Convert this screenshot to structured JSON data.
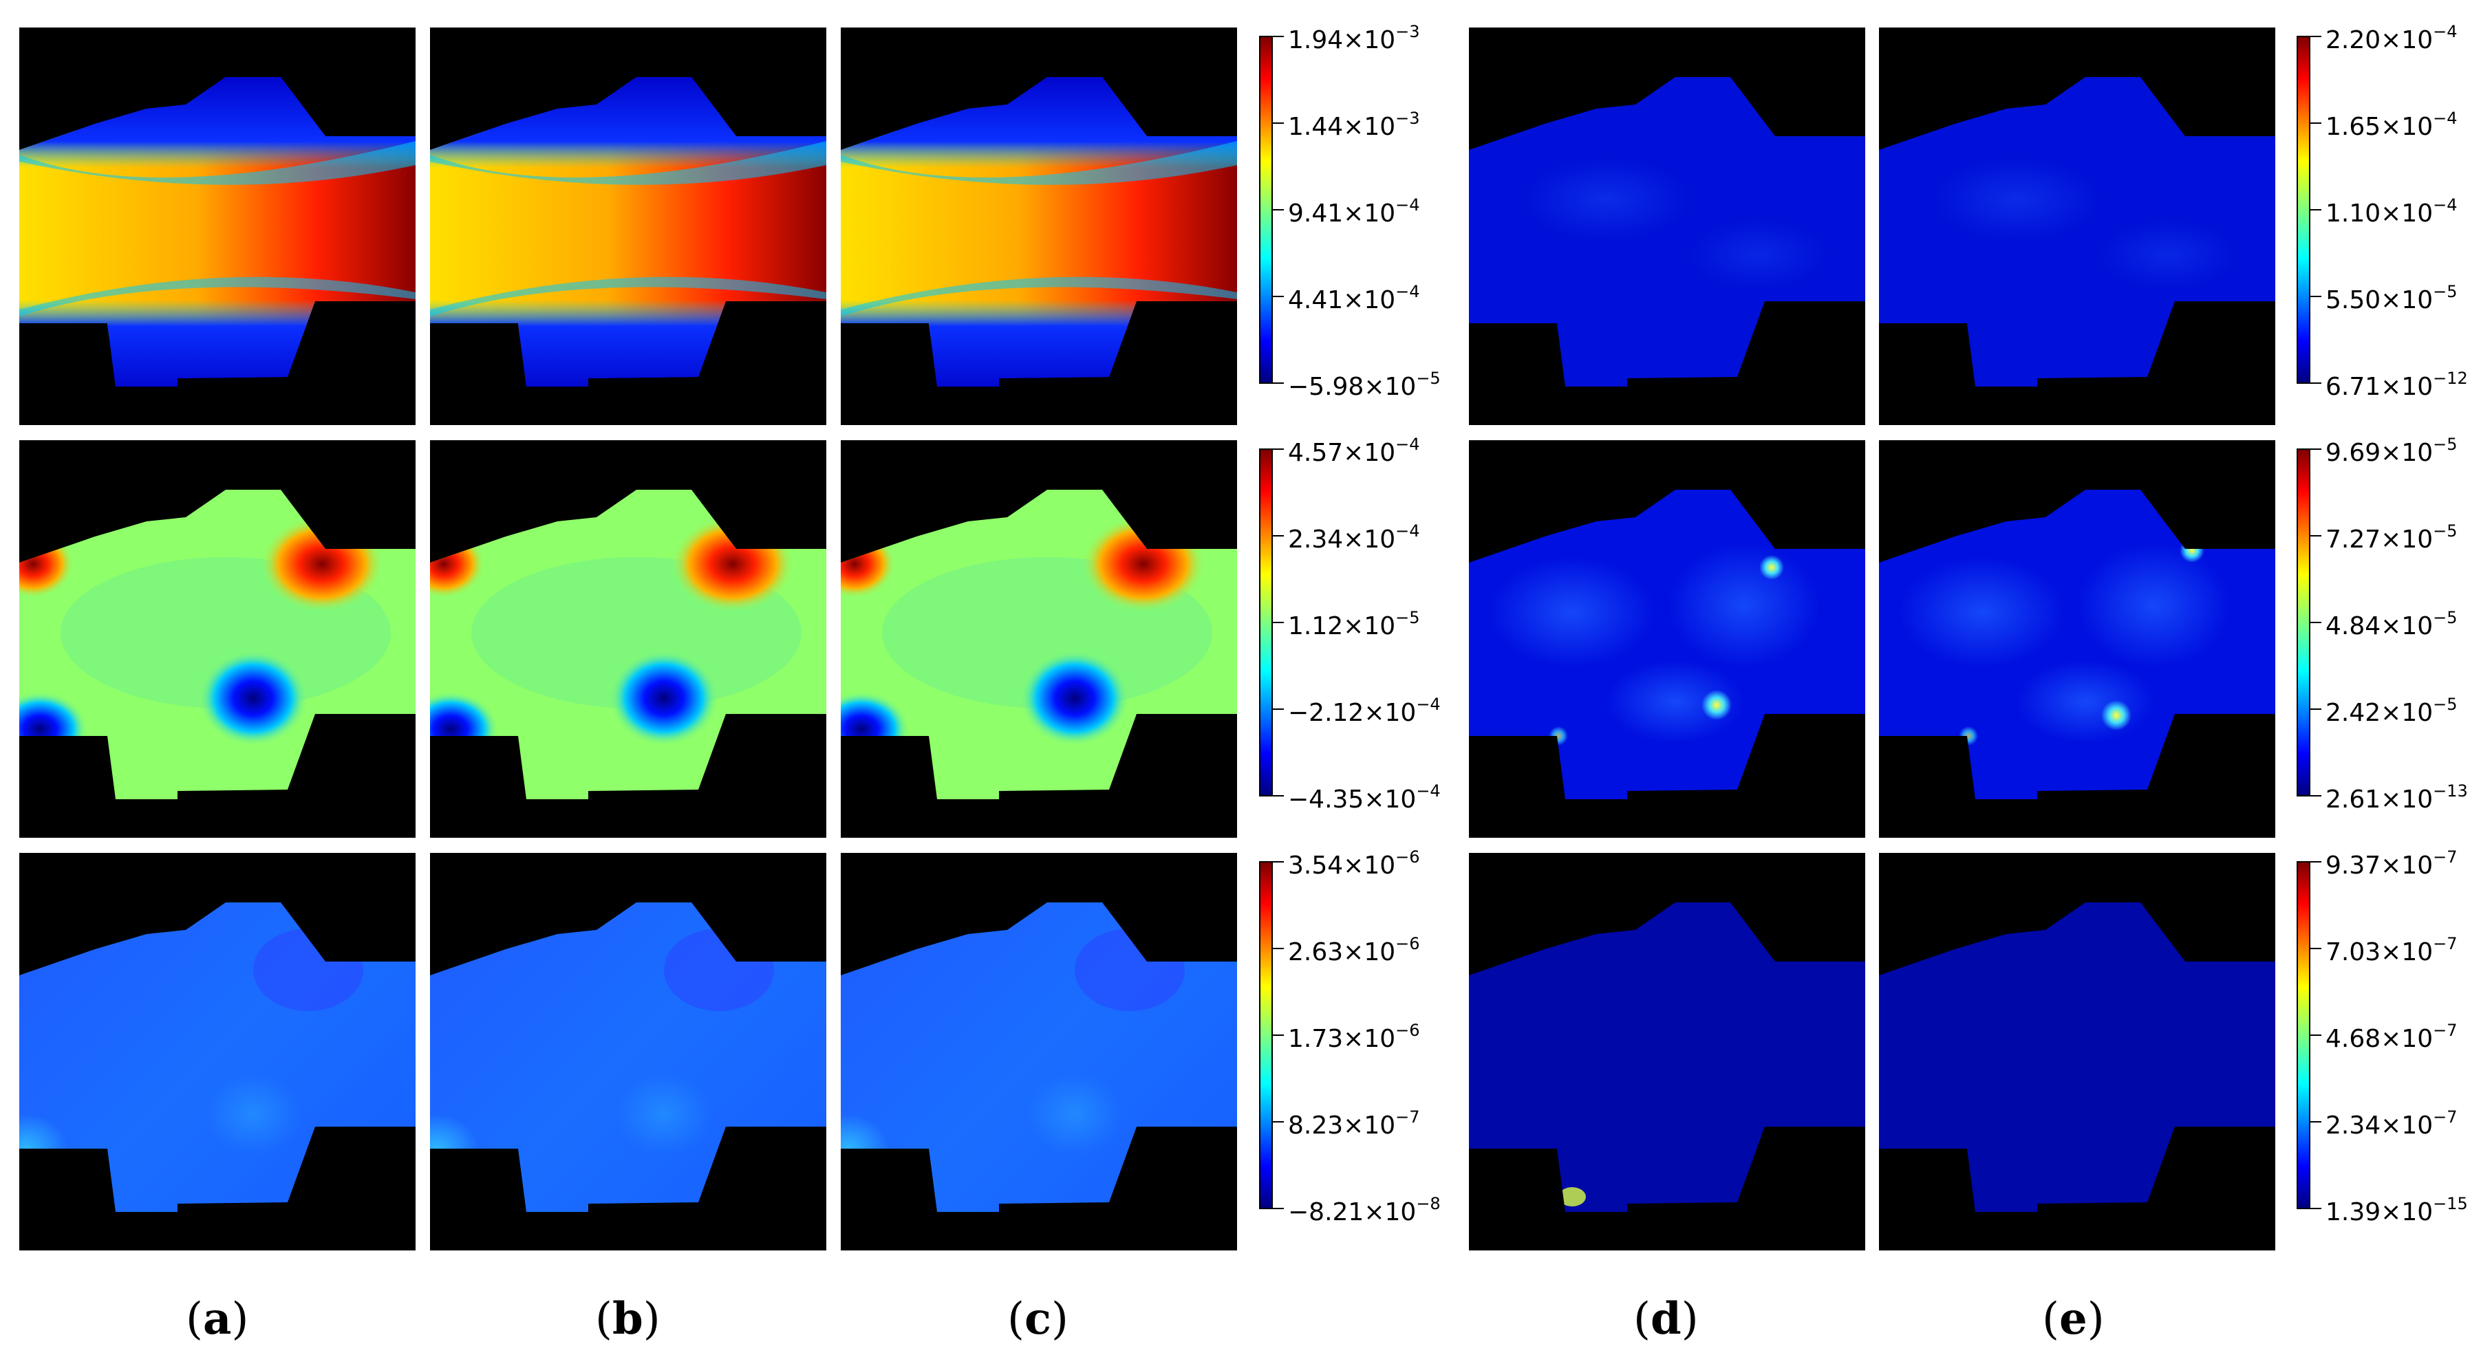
{
  "captions": [
    "a",
    "b",
    "c",
    "d",
    "e"
  ],
  "colorbars": [
    {
      "ticks": [
        "1.94",
        "1.44",
        "9.41",
        "4.41",
        "−5.98"
      ],
      "exps": [
        "−3",
        "−3",
        "−4",
        "−4",
        "−5"
      ]
    },
    {
      "ticks": [
        "4.57",
        "2.34",
        "1.12",
        "−2.12",
        "−4.35"
      ],
      "exps": [
        "−4",
        "−4",
        "−5",
        "−4",
        "−4"
      ]
    },
    {
      "ticks": [
        "3.54",
        "2.63",
        "1.73",
        "8.23",
        "−8.21"
      ],
      "exps": [
        "−6",
        "−6",
        "−6",
        "−7",
        "−8"
      ]
    },
    {
      "ticks": [
        "2.20",
        "1.65",
        "1.10",
        "5.50",
        "6.71"
      ],
      "exps": [
        "−4",
        "−4",
        "−4",
        "−5",
        "−12"
      ]
    },
    {
      "ticks": [
        "9.69",
        "7.27",
        "4.84",
        "2.42",
        "2.61"
      ],
      "exps": [
        "−5",
        "−5",
        "−5",
        "−5",
        "−13"
      ]
    },
    {
      "ticks": [
        "9.37",
        "7.03",
        "4.68",
        "2.34",
        "1.39"
      ],
      "exps": [
        "−7",
        "−7",
        "−7",
        "−7",
        "−15"
      ]
    }
  ],
  "times": "×10"
}
